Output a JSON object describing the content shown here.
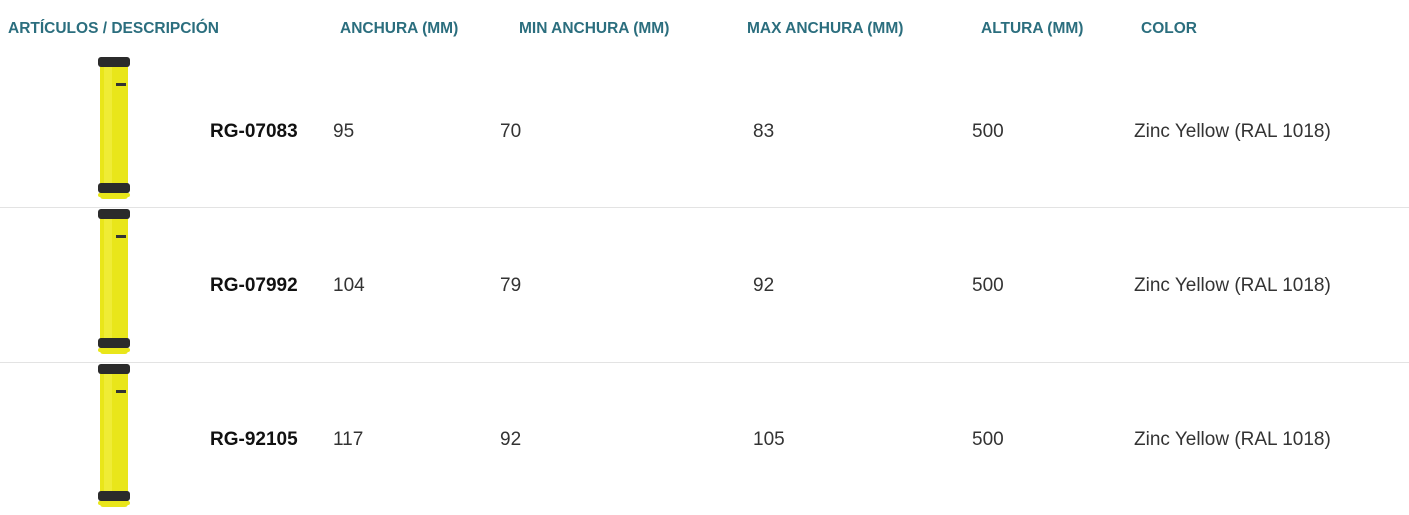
{
  "table": {
    "headers": [
      "ARTÍCULOS / DESCRIPCIÓN",
      "ANCHURA (MM)",
      "MIN ANCHURA (MM)",
      "MAX ANCHURA (MM)",
      "ALTURA (MM)",
      "COLOR"
    ],
    "rows": [
      [
        "RG-07083",
        95,
        70,
        83,
        500,
        "Zinc Yellow (RAL 1018)"
      ],
      [
        "RG-07992",
        104,
        79,
        92,
        500,
        "Zinc Yellow (RAL 1018)"
      ],
      [
        "RG-92105",
        117,
        92,
        105,
        500,
        "Zinc Yellow (RAL 1018)"
      ]
    ]
  }
}
